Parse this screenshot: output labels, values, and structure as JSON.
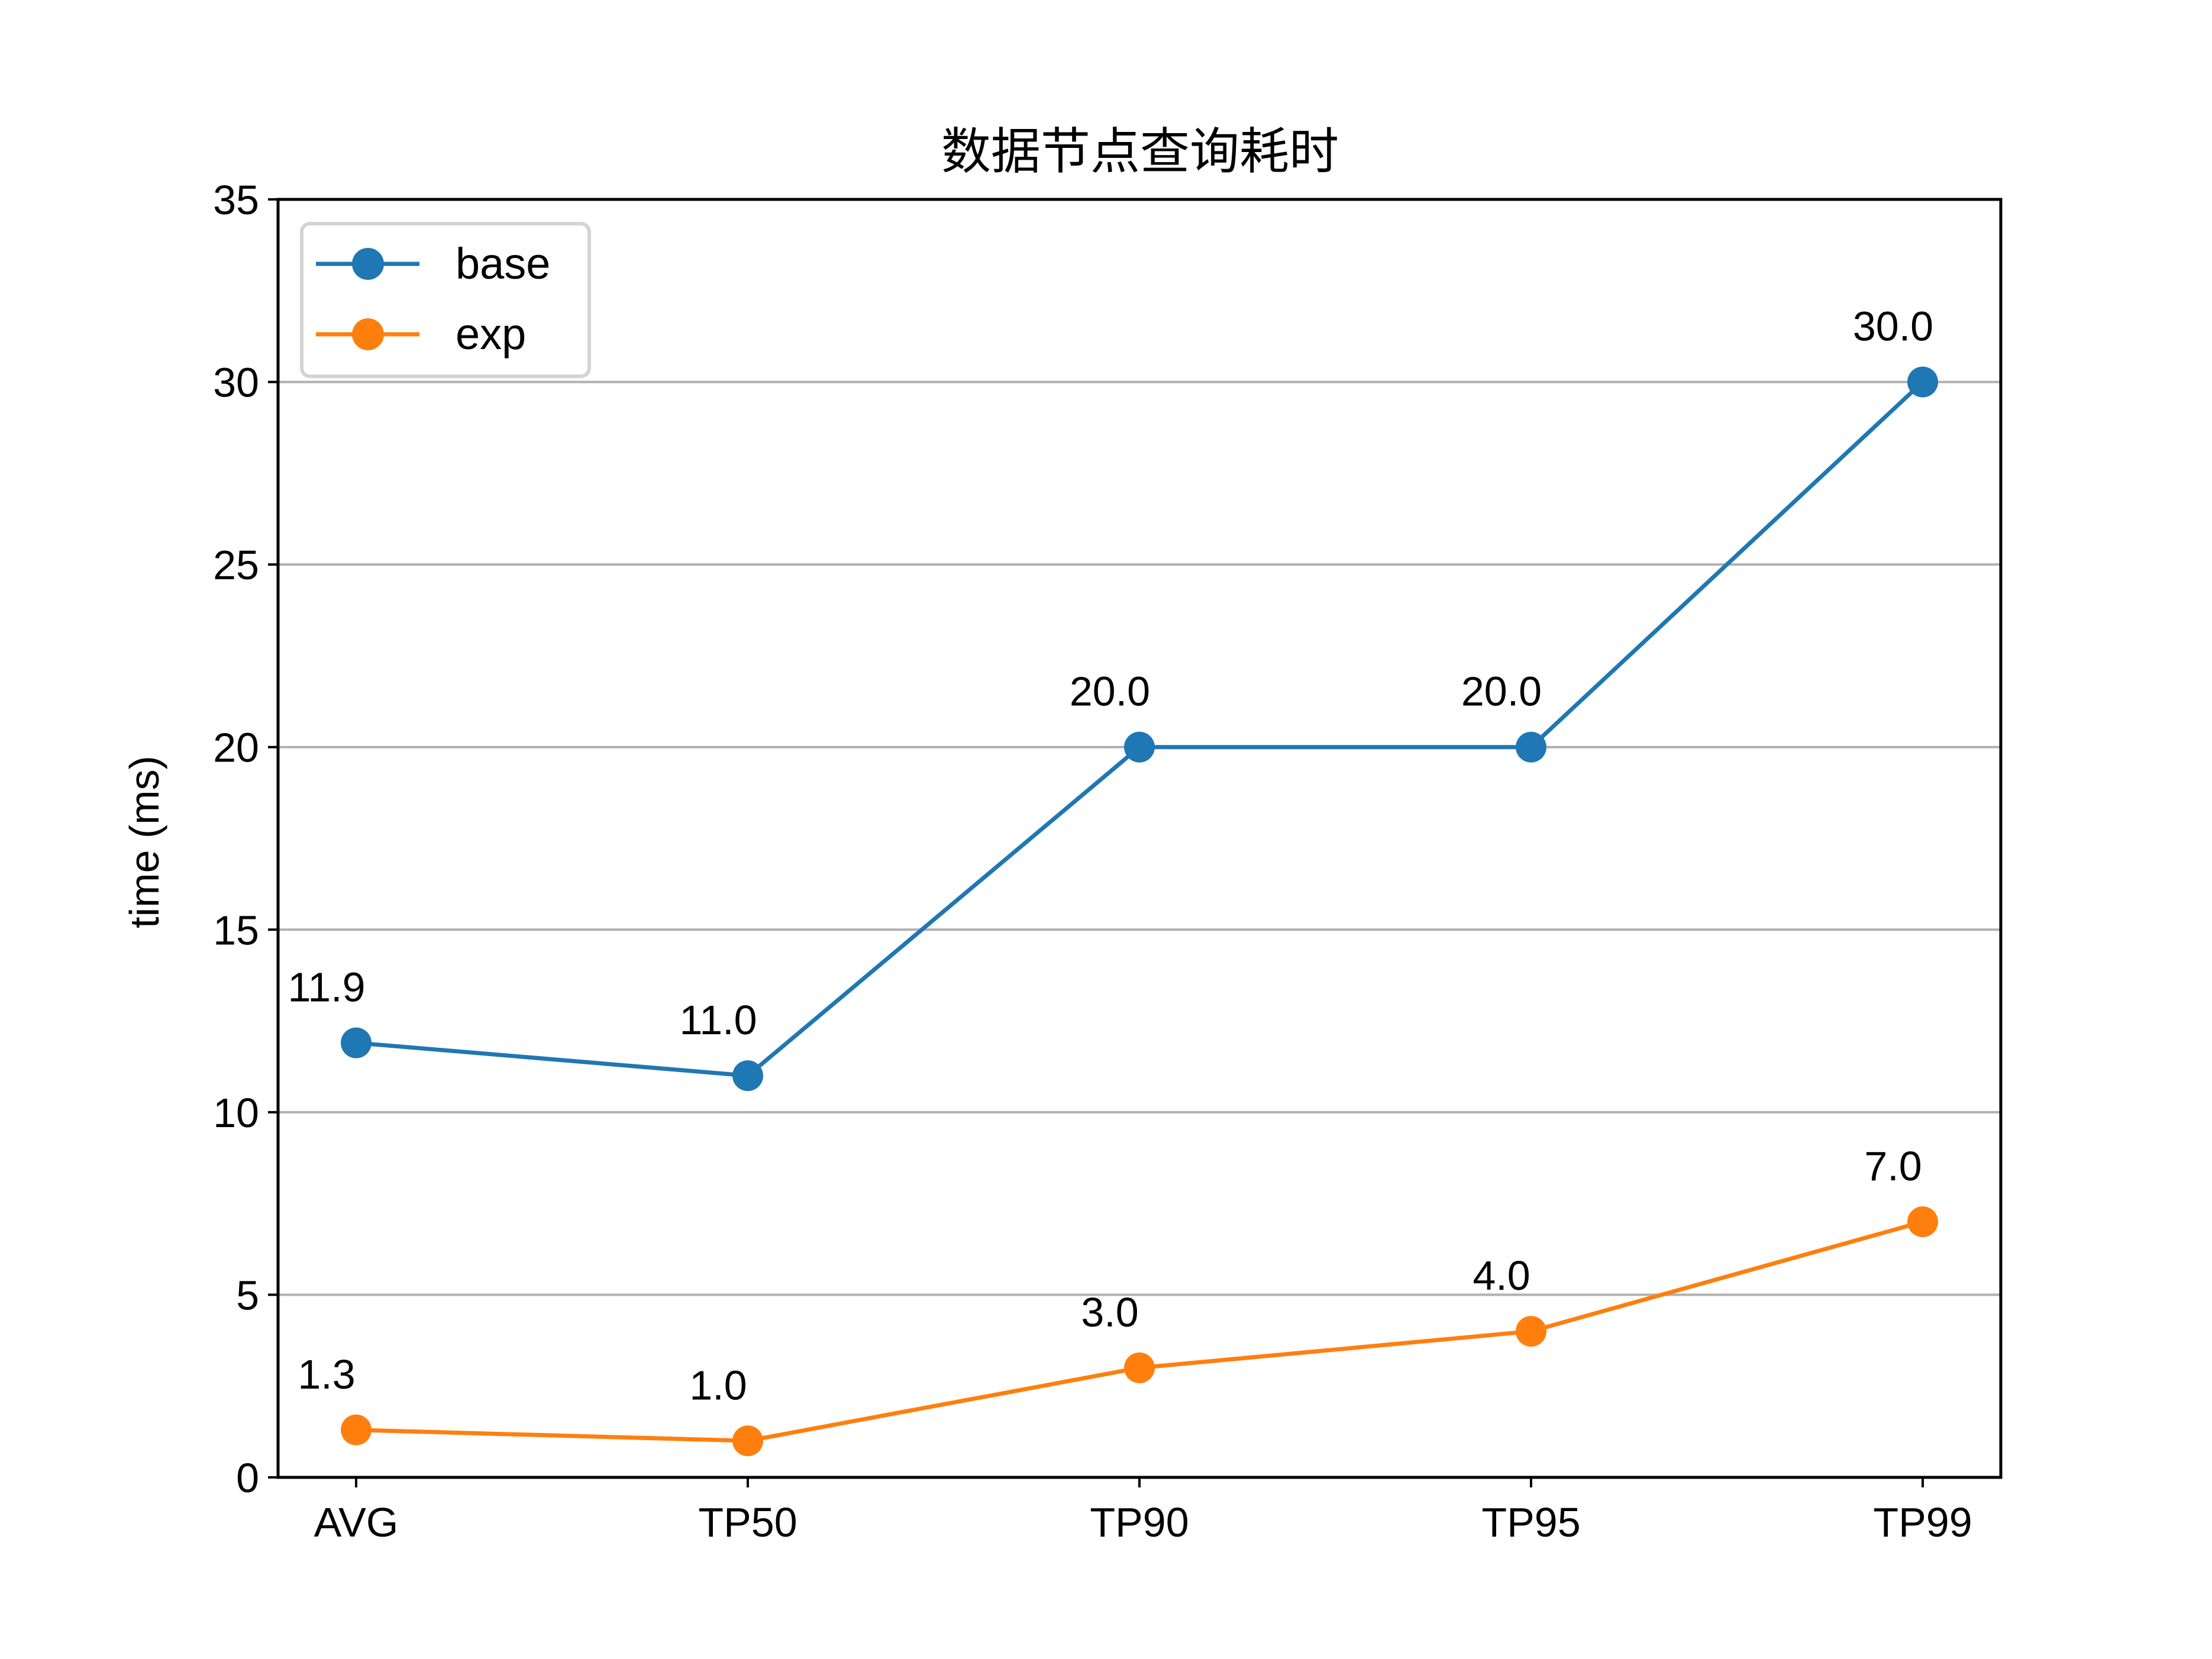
{
  "chart_data": {
    "type": "line",
    "title": "数据节点查询耗时",
    "xlabel": "",
    "ylabel": "time (ms)",
    "categories": [
      "AVG",
      "TP50",
      "TP90",
      "TP95",
      "TP99"
    ],
    "ylim": [
      0,
      35
    ],
    "yticks": [
      0,
      5,
      10,
      15,
      20,
      25,
      30,
      35
    ],
    "grid": "horizontal",
    "legend_position": "top-left",
    "series": [
      {
        "name": "base",
        "color": "#1f77b4",
        "values": [
          11.9,
          11.0,
          20.0,
          20.0,
          30.0
        ],
        "labels": [
          "11.9",
          "11.0",
          "20.0",
          "20.0",
          "30.0"
        ]
      },
      {
        "name": "exp",
        "color": "#ff7f0e",
        "values": [
          1.3,
          1.0,
          3.0,
          4.0,
          7.0
        ],
        "labels": [
          "1.3",
          "1.0",
          "3.0",
          "4.0",
          "7.0"
        ]
      }
    ]
  }
}
